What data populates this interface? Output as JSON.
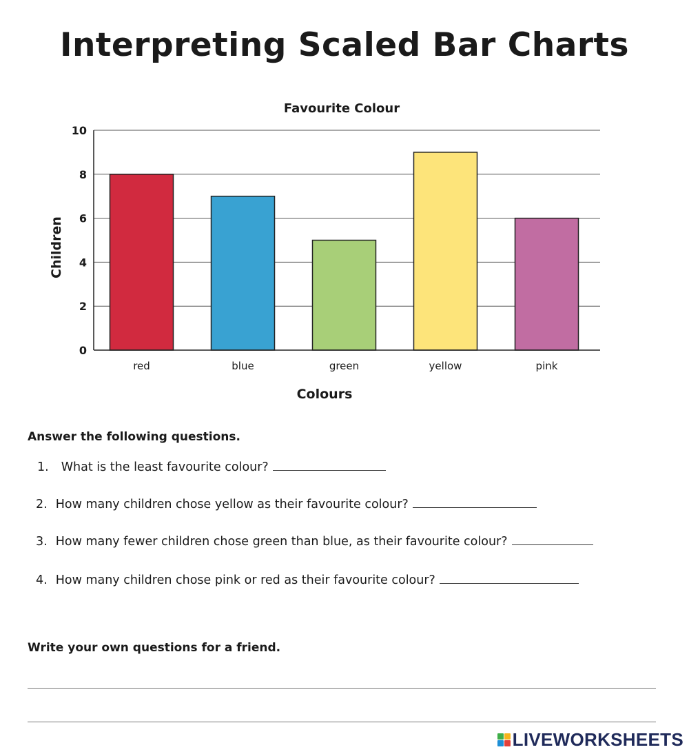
{
  "page": {
    "title": "Interpreting Scaled Bar Charts",
    "instructions": "Answer the following questions.",
    "own_questions_prompt": "Write your own questions for a friend.",
    "brand": "LIVEWORKSHEETS",
    "brand_colors": [
      "#3fae49",
      "#f6b51b",
      "#1e8fd6",
      "#e2403b"
    ]
  },
  "questions": [
    {
      "number": "1.",
      "text": "What is the least favourite colour?"
    },
    {
      "number": "2.",
      "text": "How many children chose yellow as their favourite colour?"
    },
    {
      "number": "3.",
      "text": "How many fewer children chose green than blue, as their favourite colour?"
    },
    {
      "number": "4.",
      "text": "How many children chose pink or red as their favourite colour?"
    }
  ],
  "chart_data": {
    "type": "bar",
    "title": "Favourite Colour",
    "xlabel": "Colours",
    "ylabel": "Children",
    "categories": [
      "red",
      "blue",
      "green",
      "yellow",
      "pink"
    ],
    "values": [
      8,
      7,
      5,
      9,
      6
    ],
    "colors": [
      "#d12a3f",
      "#39a2d2",
      "#a8cf78",
      "#fde47a",
      "#c16da2"
    ],
    "ylim": [
      0,
      10
    ],
    "yticks": [
      0,
      2,
      4,
      6,
      8,
      10
    ],
    "grid": true,
    "legend": false
  }
}
